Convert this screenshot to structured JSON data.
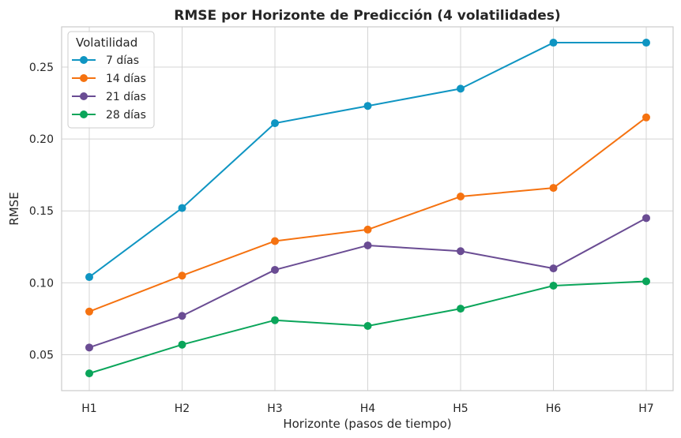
{
  "chart_data": {
    "type": "line",
    "title": "RMSE por Horizonte de Predicción (4 volatilidades)",
    "xlabel": "Horizonte (pasos de tiempo)",
    "ylabel": "RMSE",
    "categories": [
      "H1",
      "H2",
      "H3",
      "H4",
      "H5",
      "H6",
      "H7"
    ],
    "ylim": [
      0.025,
      0.278
    ],
    "yticks": [
      0.05,
      0.1,
      0.15,
      0.2,
      0.25
    ],
    "ytick_labels": [
      "0.05",
      "0.10",
      "0.15",
      "0.20",
      "0.25"
    ],
    "grid": true,
    "legend": {
      "title": "Volatilidad",
      "placement": "top-left"
    },
    "series": [
      {
        "name": "7 días",
        "color": "#0f95c2",
        "values": [
          0.104,
          0.152,
          0.211,
          0.223,
          0.235,
          0.267,
          0.267
        ]
      },
      {
        "name": "14 días",
        "color": "#f57210",
        "values": [
          0.08,
          0.105,
          0.129,
          0.137,
          0.16,
          0.166,
          0.215
        ]
      },
      {
        "name": "21 días",
        "color": "#6a4c93",
        "values": [
          0.055,
          0.077,
          0.109,
          0.126,
          0.122,
          0.11,
          0.145
        ]
      },
      {
        "name": "28 días",
        "color": "#0aa55a",
        "values": [
          0.037,
          0.057,
          0.074,
          0.07,
          0.082,
          0.098,
          0.101
        ]
      }
    ]
  }
}
